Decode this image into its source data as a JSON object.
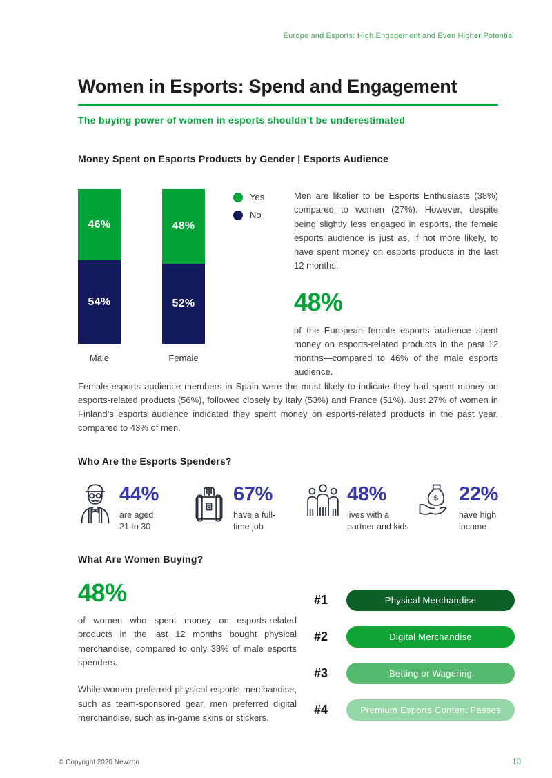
{
  "page": {
    "header": "Europe and Esports: High Engagement and Even Higher Potential",
    "title": "Women in Esports: Spend and Engagement",
    "subtitle": "The buying power of women in esports shouldn’t be underestimated",
    "footer": {
      "copyright": "© Copyright 2020 Newzoo",
      "page_number": "10"
    }
  },
  "colors": {
    "primary_green": "#03a437",
    "navy": "#141a5e",
    "stat_indigo": "#3538a6",
    "header_green": "#3fae58",
    "page_number_green": "#2fae53"
  },
  "chart_section": {
    "heading": "Money Spent on Esports Products by Gender | Esports Audience",
    "intro_paragraph": "Men are likelier to be Esports Enthusiasts (38%) compared to women (27%). However, despite being slightly less engaged in esports, the female esports audience is just as, if not more likely, to have spent money on esports products in the last 12 months.",
    "big_stat": "48%",
    "stat_paragraph": "of the European female esports audience spent money on esports-related products in the past 12 months—compared to 46% of the male esports audience.",
    "countries_paragraph": "Female esports audience members in Spain were the most likely to indicate they had spent money on esports-related products (56%), followed closely by Italy (53%) and France (51%). Just 27% of women in Finland’s esports audience indicated they spent money on esports-related products in the past year, compared to 43% of men."
  },
  "chart_data": {
    "type": "bar",
    "stacked": true,
    "categories": [
      "Male",
      "Female"
    ],
    "series": [
      {
        "name": "Yes",
        "color": "#03a437",
        "values": [
          46,
          48
        ]
      },
      {
        "name": "No",
        "color": "#141a5e",
        "values": [
          54,
          52
        ]
      }
    ],
    "value_suffix": "%",
    "ylim": [
      0,
      100
    ],
    "grid": false,
    "legend_position": "right"
  },
  "spenders_section": {
    "heading": "Who Are the Esports Spenders?",
    "stats": [
      {
        "icon": "elderly-man-icon",
        "value": "44%",
        "label_lines": [
          "are aged",
          "21 to 30"
        ]
      },
      {
        "icon": "briefcase-icon",
        "value": "67%",
        "label_lines": [
          "have a full-",
          "time job"
        ]
      },
      {
        "icon": "family-icon",
        "value": "48%",
        "label_lines": [
          "lives with a",
          "partner and kids"
        ]
      },
      {
        "icon": "money-bag-hand-icon",
        "value": "22%",
        "label_lines": [
          "have high",
          "income"
        ]
      }
    ]
  },
  "buying_section": {
    "heading": "What Are Women Buying?",
    "big_stat": "48%",
    "paragraph_1": "of women who spent money on esports-related products in the last 12 months bought physical merchandise, compared to only 38% of male esports spenders.",
    "paragraph_2": "While women preferred physical esports merchandise, such as team-sponsored gear, men preferred digital merchandise, such as in-game skins or stickers.",
    "rankings": [
      {
        "rank": "#1",
        "label": "Physical Merchandise",
        "color": "#0c5f26"
      },
      {
        "rank": "#2",
        "label": "Digital Merchandise",
        "color": "#0fa434"
      },
      {
        "rank": "#3",
        "label": "Betting or Wagering",
        "color": "#55ba6d"
      },
      {
        "rank": "#4",
        "label": "Premium Esports Content Passes",
        "color": "#95d6a6"
      }
    ]
  }
}
